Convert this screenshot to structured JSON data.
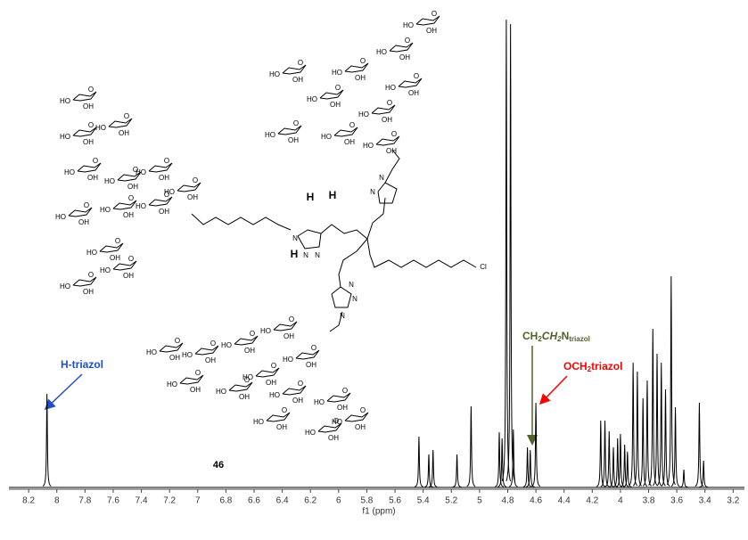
{
  "chart_data": {
    "type": "spectrum",
    "x_label": "f1 (ppm)",
    "xlim": [
      8.34,
      3.12
    ],
    "xticks": [
      8.2,
      8.0,
      7.8,
      7.6,
      7.4,
      7.2,
      7.0,
      6.8,
      6.6,
      6.4,
      6.2,
      6.0,
      5.8,
      5.6,
      5.4,
      5.2,
      5.0,
      4.8,
      4.6,
      4.4,
      4.2,
      4.0,
      3.8,
      3.6,
      3.4,
      3.2
    ],
    "color": "#000000",
    "x": [
      8.07,
      5.43,
      5.36,
      5.33,
      5.16,
      5.06,
      4.86,
      4.84,
      4.81,
      4.78,
      4.76,
      4.66,
      4.64,
      4.6,
      4.14,
      4.11,
      4.08,
      4.05,
      4.02,
      4.0,
      3.97,
      3.95,
      3.91,
      3.88,
      3.84,
      3.81,
      3.77,
      3.74,
      3.71,
      3.68,
      3.64,
      3.61,
      3.55,
      3.44,
      3.41
    ],
    "values": [
      105,
      57,
      37,
      42,
      37,
      91,
      62,
      55,
      525,
      520,
      65,
      45,
      42,
      95,
      75,
      75,
      63,
      45,
      55,
      60,
      48,
      40,
      140,
      130,
      100,
      120,
      178,
      150,
      140,
      110,
      237,
      90,
      20,
      95,
      30
    ],
    "annotations": [
      {
        "text": "H-triazol",
        "color": "#1f4fd1"
      },
      {
        "parts": [
          "CH",
          "2",
          "CH",
          "2",
          "N",
          "triazol"
        ],
        "color": "#4f6228"
      },
      {
        "parts": [
          "OCH",
          "2",
          "triazol"
        ],
        "color": "#ff0000"
      }
    ],
    "structure": {
      "compound": "46",
      "hydroxyl_left": "HO",
      "hydroxyl_right": "OH",
      "oxygen": "O",
      "nitrogen": "N",
      "chlorine": "Cl",
      "hydrogen": "H",
      "hydrogen_colors": [
        "#1f3fd0",
        "#e02020",
        "#2e8b2e"
      ]
    }
  }
}
